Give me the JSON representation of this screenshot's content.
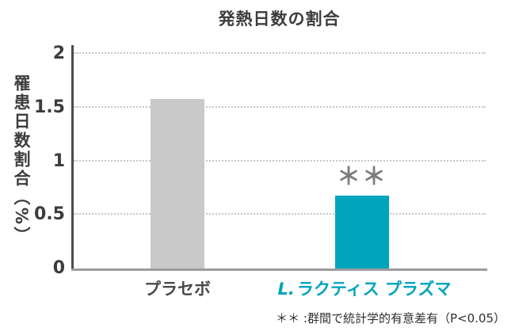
{
  "chart_data": {
    "type": "bar",
    "title": "発熱日数の割合",
    "ylabel": "罹患日数割合（%）",
    "xlabel": "",
    "categories": [
      "プラセボ",
      "L.ラクティス プラズマ"
    ],
    "values": [
      1.58,
      0.68
    ],
    "ylim": [
      0,
      2
    ],
    "yticks": [
      "0",
      "0.5",
      "1",
      "1.5",
      "2"
    ],
    "ytick_values": [
      0,
      0.5,
      1,
      1.5,
      2
    ],
    "bar_colors": [
      "#c9c9c9",
      "#00a4bd"
    ],
    "grid": "dotted-horizontal",
    "legend": "none",
    "annotation": {
      "text": "＊＊",
      "bar_index": 1,
      "color": "#7d7d7d"
    },
    "footnote": "＊＊ :群間で統計学的有意差有（P<0.05）",
    "x_labels_styled": [
      {
        "prefix": "",
        "rest": "プラセボ",
        "color": "#4a4a4a"
      },
      {
        "prefix": "L.",
        "rest": "ラクティス プラズマ",
        "color": "#00a4bd"
      }
    ]
  }
}
